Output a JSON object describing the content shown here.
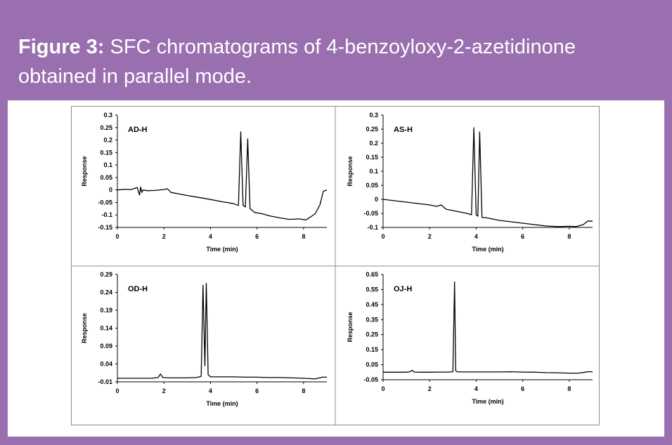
{
  "figure": {
    "label": "Figure 3:",
    "caption": "SFC chromatograms of 4-benzoyloxy-2-azetidinone obtained in parallel mode.",
    "background_color": "#9a6fb0",
    "text_color": "#ffffff"
  },
  "chart_data": [
    {
      "type": "line",
      "panel_label": "AD-H",
      "xlabel": "Time (min)",
      "ylabel": "Response",
      "xlim": [
        0,
        9
      ],
      "ylim": [
        -0.15,
        0.3
      ],
      "xticks": [
        0,
        2,
        4,
        6,
        8
      ],
      "yticks": [
        -0.15,
        -0.1,
        -0.05,
        0,
        0.05,
        0.1,
        0.15,
        0.2,
        0.25,
        0.3
      ],
      "ytick_labels": [
        "-0.15",
        "-0.1",
        "-0.05",
        "0",
        "0.05",
        "0.1",
        "0.15",
        "0.2",
        "0.25",
        "0.3"
      ],
      "series": [
        {
          "x": [
            0.0,
            0.3,
            0.6,
            0.85,
            0.95,
            1.0,
            1.05,
            1.1,
            1.3,
            1.6,
            2.0,
            2.15,
            2.3,
            2.6,
            3.0,
            3.5,
            4.0,
            4.5,
            5.0,
            5.2,
            5.3,
            5.4,
            5.5,
            5.6,
            5.7,
            5.9,
            6.2,
            6.6,
            7.0,
            7.4,
            7.8,
            8.1,
            8.3,
            8.5,
            8.7,
            8.85,
            9.0
          ],
          "y": [
            0.0,
            0.003,
            0.002,
            0.01,
            -0.02,
            0.012,
            -0.01,
            0.0,
            -0.003,
            -0.002,
            0.002,
            0.005,
            -0.01,
            -0.015,
            -0.022,
            -0.03,
            -0.038,
            -0.047,
            -0.055,
            -0.062,
            0.233,
            -0.062,
            -0.068,
            0.205,
            -0.075,
            -0.09,
            -0.095,
            -0.105,
            -0.112,
            -0.118,
            -0.116,
            -0.12,
            -0.108,
            -0.095,
            -0.06,
            -0.005,
            0.0
          ]
        }
      ]
    },
    {
      "type": "line",
      "panel_label": "AS-H",
      "xlabel": "Time (min)",
      "ylabel": "Response",
      "xlim": [
        0,
        9
      ],
      "ylim": [
        -0.1,
        0.3
      ],
      "xticks": [
        0,
        2,
        4,
        6,
        8
      ],
      "yticks": [
        -0.1,
        -0.05,
        0,
        0.05,
        0.1,
        0.15,
        0.2,
        0.25,
        0.3
      ],
      "ytick_labels": [
        "-0.1",
        "-0.05",
        "0",
        "0.05",
        "0.1",
        "0.15",
        "0.2",
        "0.25",
        "0.3"
      ],
      "series": [
        {
          "x": [
            0.0,
            0.5,
            1.0,
            1.5,
            2.0,
            2.3,
            2.5,
            2.7,
            3.0,
            3.3,
            3.6,
            3.8,
            3.9,
            4.0,
            4.07,
            4.15,
            4.25,
            4.4,
            4.7,
            5.0,
            5.5,
            6.0,
            6.5,
            7.0,
            7.5,
            8.0,
            8.3,
            8.6,
            8.8,
            9.0
          ],
          "y": [
            0.0,
            -0.005,
            -0.01,
            -0.015,
            -0.02,
            -0.025,
            -0.02,
            -0.035,
            -0.04,
            -0.045,
            -0.05,
            -0.055,
            0.255,
            -0.055,
            -0.06,
            0.24,
            -0.065,
            -0.065,
            -0.07,
            -0.075,
            -0.08,
            -0.085,
            -0.09,
            -0.095,
            -0.097,
            -0.096,
            -0.097,
            -0.09,
            -0.077,
            -0.078
          ]
        }
      ]
    },
    {
      "type": "line",
      "panel_label": "OD-H",
      "xlabel": "Time (min)",
      "ylabel": "Response",
      "xlim": [
        0,
        9
      ],
      "ylim": [
        -0.01,
        0.29
      ],
      "xticks": [
        0,
        2,
        4,
        6,
        8
      ],
      "yticks": [
        -0.01,
        0.04,
        0.09,
        0.14,
        0.19,
        0.24,
        0.29
      ],
      "ytick_labels": [
        "-0.01",
        "0.04",
        "0.09",
        "0.14",
        "0.19",
        "0.24",
        "0.29"
      ],
      "series": [
        {
          "x": [
            0.0,
            0.5,
            1.0,
            1.5,
            1.75,
            1.85,
            1.95,
            2.2,
            2.6,
            3.0,
            3.4,
            3.6,
            3.68,
            3.76,
            3.82,
            3.9,
            4.0,
            4.2,
            4.6,
            5.0,
            5.5,
            6.0,
            6.5,
            7.0,
            7.5,
            8.0,
            8.5,
            8.8,
            9.0
          ],
          "y": [
            0.0,
            0.0,
            0.0,
            0.0,
            0.002,
            0.012,
            0.002,
            0.001,
            0.001,
            0.001,
            0.002,
            0.005,
            0.26,
            0.035,
            0.265,
            0.01,
            0.004,
            0.004,
            0.004,
            0.004,
            0.003,
            0.003,
            0.002,
            0.002,
            0.001,
            0.0,
            -0.002,
            0.003,
            0.003
          ]
        }
      ]
    },
    {
      "type": "line",
      "panel_label": "OJ-H",
      "xlabel": "Time (min)",
      "ylabel": "Response",
      "xlim": [
        0,
        9
      ],
      "ylim": [
        -0.05,
        0.65
      ],
      "xticks": [
        0,
        2,
        4,
        6,
        8
      ],
      "yticks": [
        -0.05,
        0.05,
        0.15,
        0.25,
        0.35,
        0.45,
        0.55,
        0.65
      ],
      "ytick_labels": [
        "-0.05",
        "0.05",
        "0.15",
        "0.25",
        "0.35",
        "0.45",
        "0.55",
        "0.65"
      ],
      "series": [
        {
          "x": [
            0.0,
            0.5,
            1.0,
            1.15,
            1.25,
            1.35,
            1.6,
            2.0,
            2.4,
            2.8,
            3.0,
            3.07,
            3.12,
            3.18,
            3.3,
            3.6,
            4.0,
            4.5,
            5.0,
            5.5,
            6.0,
            6.5,
            7.0,
            7.5,
            8.0,
            8.4,
            8.6,
            8.8,
            9.0
          ],
          "y": [
            0.0,
            0.0,
            0.0,
            0.003,
            0.012,
            0.001,
            0.0,
            0.0,
            0.001,
            0.001,
            0.003,
            0.6,
            0.01,
            0.003,
            0.002,
            0.002,
            0.002,
            0.002,
            0.002,
            0.003,
            0.001,
            0.0,
            -0.003,
            -0.004,
            -0.006,
            -0.006,
            -0.002,
            0.003,
            0.003
          ]
        }
      ]
    }
  ]
}
